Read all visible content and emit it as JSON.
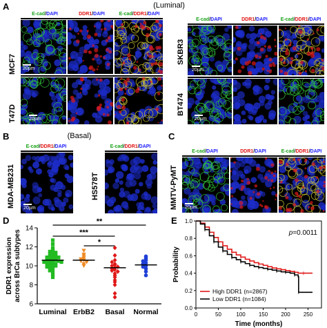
{
  "panels": {
    "A": {
      "letter": "A",
      "group": "(Luminal)"
    },
    "B": {
      "letter": "B",
      "group": "(Basal)"
    },
    "C": {
      "letter": "C"
    },
    "D": {
      "letter": "D"
    },
    "E": {
      "letter": "E"
    }
  },
  "channel_headers": {
    "ecad": [
      "E-cad",
      "/",
      "DAPI"
    ],
    "ddr1": [
      "DDR1",
      "/",
      "DAPI"
    ],
    "merge": [
      "E-cad",
      "/",
      "DDR1",
      "/",
      "DAPI"
    ],
    "ecad_ddr1": [
      "E-cad",
      "/",
      "DDR1",
      "/",
      "DAPI"
    ]
  },
  "cell_lines": {
    "mcf7": "MCF7",
    "t47d": "T47D",
    "skbr3": "SKBR3",
    "bt474": "BT474",
    "mdamb231": "MDA-MB231",
    "hs578t": "HS578T",
    "mmtv": "MMTV-PyMT"
  },
  "scale_bar": "20µm",
  "colors": {
    "green": "#1aa31a",
    "red": "#e01010",
    "blue": "#1a1aff",
    "ecad_green": "#2fbf3a",
    "ddr1_red": "#d81818",
    "dapi_blue": "#1c2cc8"
  },
  "chart_data": [
    {
      "type": "scatter",
      "panel": "D",
      "ylabel": "DDR1 expression\nacross BrCa subtypes",
      "categories": [
        "Luminal",
        "ErbB2",
        "Basal",
        "Normal"
      ],
      "ylim": [
        6,
        14
      ],
      "yticks": [
        6,
        8,
        10,
        12,
        14
      ],
      "marker_colors": [
        "#22bb22",
        "#f08a24",
        "#e01818",
        "#1f3fd6"
      ],
      "marker_shapes": [
        "square",
        "triangle-down",
        "diamond",
        "circle"
      ],
      "means": [
        10.6,
        10.6,
        9.8,
        10.1
      ],
      "series": [
        {
          "values": [
            12.7,
            12.3,
            11.9,
            11.7,
            11.6,
            11.5,
            11.4,
            11.3,
            11.2,
            11.2,
            11.1,
            11.0,
            11.0,
            10.9,
            10.9,
            10.8,
            10.8,
            10.7,
            10.7,
            10.6,
            10.6,
            10.6,
            10.5,
            10.5,
            10.4,
            10.4,
            10.3,
            10.3,
            10.2,
            10.2,
            10.1,
            10.0,
            10.0,
            9.9,
            9.8,
            9.7,
            9.6,
            9.5,
            9.3,
            9.1,
            8.8
          ]
        },
        {
          "values": [
            11.6,
            11.2,
            11.0,
            10.8,
            10.7,
            10.6,
            10.5,
            10.4,
            10.2,
            10.0
          ]
        },
        {
          "values": [
            11.9,
            11.1,
            10.6,
            10.4,
            10.2,
            10.1,
            10.0,
            9.9,
            9.8,
            9.7,
            9.6,
            9.5,
            9.4,
            9.2,
            9.0,
            8.8,
            8.5,
            8.3,
            8.0,
            7.1,
            6.7
          ]
        },
        {
          "values": [
            11.0,
            10.8,
            10.6,
            10.5,
            10.3,
            10.2,
            10.0,
            9.9,
            9.7,
            9.4,
            9.0
          ]
        }
      ],
      "significance": [
        {
          "from": "Luminal",
          "to": "Normal",
          "label": "**"
        },
        {
          "from": "Luminal",
          "to": "Basal",
          "label": "***"
        },
        {
          "from": "ErbB2",
          "to": "Basal",
          "label": "*"
        }
      ]
    },
    {
      "type": "line",
      "panel": "E",
      "xlabel": "Time (months)",
      "ylabel": "Probability",
      "xlim": [
        0,
        280
      ],
      "ylim": [
        0,
        1
      ],
      "xticks": [
        0,
        50,
        100,
        150,
        200,
        250
      ],
      "yticks": [
        0,
        0.2,
        0.4,
        0.6,
        0.8,
        1.0
      ],
      "annotation": {
        "p_symbol": "p",
        "p_value": "=0.0011"
      },
      "series": [
        {
          "name": "High DDR1 (n=2867)",
          "color": "#e01818",
          "x": [
            0,
            10,
            20,
            30,
            40,
            50,
            60,
            70,
            80,
            90,
            100,
            110,
            120,
            130,
            140,
            150,
            160,
            170,
            180,
            190,
            200,
            210,
            220,
            228,
            240,
            250,
            260
          ],
          "y": [
            1.0,
            0.975,
            0.93,
            0.87,
            0.81,
            0.76,
            0.715,
            0.675,
            0.64,
            0.61,
            0.585,
            0.56,
            0.54,
            0.52,
            0.505,
            0.49,
            0.475,
            0.46,
            0.45,
            0.44,
            0.43,
            0.42,
            0.41,
            0.4,
            0.4,
            0.4,
            0.4
          ]
        },
        {
          "name": "Low DDR1 (n=1084)",
          "color": "#000000",
          "x": [
            0,
            10,
            20,
            30,
            40,
            50,
            60,
            70,
            80,
            90,
            100,
            110,
            120,
            130,
            140,
            150,
            160,
            170,
            180,
            190,
            200,
            210,
            220,
            228,
            229,
            250,
            260
          ],
          "y": [
            1.0,
            0.965,
            0.9,
            0.83,
            0.76,
            0.7,
            0.655,
            0.615,
            0.58,
            0.555,
            0.53,
            0.51,
            0.49,
            0.475,
            0.465,
            0.455,
            0.445,
            0.435,
            0.425,
            0.415,
            0.41,
            0.4,
            0.38,
            0.36,
            0.18,
            0.18,
            0.18
          ]
        }
      ]
    }
  ]
}
